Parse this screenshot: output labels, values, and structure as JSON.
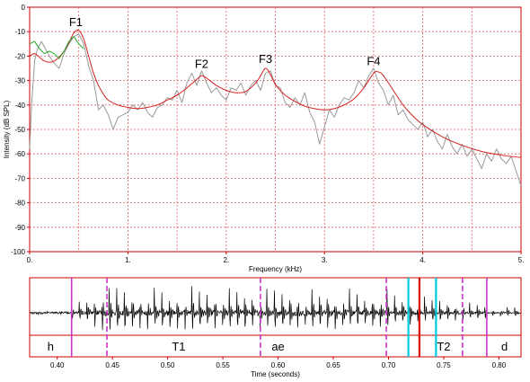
{
  "chart_data": [
    {
      "type": "line",
      "xlabel": "Frequency (kHz)",
      "ylabel": "Intensity (dB SPL)",
      "xlim": [
        0,
        5
      ],
      "ylim": [
        -100,
        0
      ],
      "x_ticks": [
        "0.",
        "1.",
        "2.",
        "3.",
        "4.",
        "5."
      ],
      "y_ticks": [
        "0",
        "-10",
        "-20",
        "-30",
        "-40",
        "-50",
        "-60",
        "-70",
        "-80",
        "-90",
        "-100"
      ],
      "grid": true,
      "colors": {
        "spectrum": "#999999",
        "envelope": "#d42020",
        "lpc_start": "#22aa22",
        "frame": "#cc0000",
        "grid": "#e06060"
      },
      "annotations": [
        {
          "label": "F1",
          "x": 0.47,
          "y": -10
        },
        {
          "label": "F2",
          "x": 1.75,
          "y": -27
        },
        {
          "label": "F3",
          "x": 2.4,
          "y": -25
        },
        {
          "label": "F4",
          "x": 3.5,
          "y": -26
        }
      ],
      "series": [
        {
          "role": "spectrum",
          "x": [
            0.0,
            0.02,
            0.05,
            0.08,
            0.12,
            0.16,
            0.2,
            0.25,
            0.3,
            0.35,
            0.4,
            0.45,
            0.5,
            0.55,
            0.6,
            0.65,
            0.7,
            0.75,
            0.8,
            0.85,
            0.9,
            0.95,
            1.0,
            1.05,
            1.1,
            1.15,
            1.2,
            1.25,
            1.3,
            1.35,
            1.4,
            1.45,
            1.5,
            1.55,
            1.6,
            1.65,
            1.7,
            1.75,
            1.8,
            1.85,
            1.9,
            1.95,
            2.0,
            2.05,
            2.1,
            2.15,
            2.2,
            2.25,
            2.3,
            2.35,
            2.4,
            2.45,
            2.5,
            2.55,
            2.6,
            2.65,
            2.7,
            2.75,
            2.8,
            2.85,
            2.9,
            2.95,
            3.0,
            3.05,
            3.1,
            3.15,
            3.2,
            3.25,
            3.3,
            3.35,
            3.4,
            3.45,
            3.5,
            3.55,
            3.6,
            3.65,
            3.7,
            3.75,
            3.8,
            3.85,
            3.9,
            3.95,
            4.0,
            4.05,
            4.1,
            4.15,
            4.2,
            4.25,
            4.3,
            4.35,
            4.4,
            4.45,
            4.5,
            4.55,
            4.6,
            4.65,
            4.7,
            4.75,
            4.8,
            4.85,
            4.9,
            4.95,
            5.0
          ],
          "y": [
            -58,
            -40,
            -22,
            -17,
            -14,
            -17,
            -20,
            -23,
            -25,
            -19,
            -15,
            -12,
            -11,
            -15,
            -24,
            -30,
            -42,
            -40,
            -44,
            -50,
            -45,
            -44,
            -43,
            -40,
            -42,
            -39,
            -43,
            -45,
            -41,
            -40,
            -37,
            -38,
            -34,
            -39,
            -31,
            -27,
            -32,
            -26,
            -31,
            -35,
            -33,
            -36,
            -38,
            -33,
            -34,
            -31,
            -36,
            -32,
            -30,
            -34,
            -27,
            -26,
            -32,
            -33,
            -39,
            -41,
            -37,
            -40,
            -35,
            -43,
            -47,
            -56,
            -49,
            -42,
            -45,
            -40,
            -37,
            -38,
            -35,
            -30,
            -33,
            -28,
            -25,
            -31,
            -34,
            -40,
            -36,
            -44,
            -42,
            -46,
            -48,
            -50,
            -47,
            -53,
            -50,
            -55,
            -58,
            -52,
            -57,
            -60,
            -56,
            -61,
            -58,
            -62,
            -66,
            -60,
            -63,
            -58,
            -62,
            -64,
            -61,
            -67,
            -73
          ]
        },
        {
          "role": "envelope",
          "x": [
            0.0,
            0.05,
            0.1,
            0.15,
            0.2,
            0.25,
            0.3,
            0.35,
            0.4,
            0.45,
            0.5,
            0.55,
            0.6,
            0.65,
            0.7,
            0.75,
            0.8,
            0.9,
            1.0,
            1.1,
            1.2,
            1.3,
            1.4,
            1.5,
            1.6,
            1.7,
            1.75,
            1.8,
            1.9,
            2.0,
            2.1,
            2.2,
            2.3,
            2.35,
            2.4,
            2.45,
            2.5,
            2.6,
            2.7,
            2.8,
            2.9,
            3.0,
            3.1,
            3.2,
            3.3,
            3.4,
            3.5,
            3.55,
            3.6,
            3.7,
            3.8,
            3.9,
            4.0,
            4.2,
            4.4,
            4.6,
            4.8,
            5.0
          ],
          "y": [
            -20,
            -19,
            -20.5,
            -22,
            -22.5,
            -22,
            -20.5,
            -18,
            -14.5,
            -10.5,
            -9.5,
            -13,
            -20,
            -27,
            -32,
            -35.5,
            -38,
            -40,
            -41,
            -41.5,
            -41,
            -40,
            -38,
            -36,
            -33,
            -29.5,
            -28,
            -29,
            -32,
            -34,
            -35,
            -34.5,
            -31,
            -28,
            -25,
            -27.5,
            -31.5,
            -36,
            -38.5,
            -40.5,
            -41.5,
            -42,
            -41.5,
            -40,
            -37.5,
            -33,
            -27,
            -26.5,
            -28,
            -34,
            -40,
            -44.5,
            -48,
            -53,
            -56.5,
            -59,
            -60.5,
            -61.5
          ]
        },
        {
          "role": "lpc_start",
          "x": [
            0.0,
            0.05,
            0.1,
            0.15,
            0.2,
            0.25,
            0.3,
            0.35,
            0.4,
            0.45,
            0.5,
            0.55
          ],
          "y": [
            -15,
            -14,
            -17,
            -19,
            -18,
            -19,
            -21,
            -18,
            -14,
            -12,
            -15,
            -17
          ]
        }
      ]
    },
    {
      "type": "line",
      "subtype": "waveform",
      "xlabel": "Time (seconds)",
      "xlim": [
        0.375,
        0.82
      ],
      "x_ticks": [
        "0.40",
        "0.45",
        "0.50",
        "0.55",
        "0.60",
        "0.65",
        "0.70",
        "0.75",
        "0.80"
      ],
      "segments": [
        {
          "label": "h",
          "x": 0.394
        },
        {
          "label": "T1",
          "x": 0.51
        },
        {
          "label": "ae",
          "x": 0.6
        },
        {
          "label": "T2",
          "x": 0.75
        },
        {
          "label": "d",
          "x": 0.805
        }
      ],
      "markers": [
        {
          "t": 0.413,
          "color": "#cc33cc",
          "style": "solid"
        },
        {
          "t": 0.445,
          "color": "#cc33cc",
          "style": "dashed"
        },
        {
          "t": 0.584,
          "color": "#cc33cc",
          "style": "dashed"
        },
        {
          "t": 0.698,
          "color": "#cc33cc",
          "style": "dashed"
        },
        {
          "t": 0.718,
          "color": "#00ccdd",
          "style": "solid"
        },
        {
          "t": 0.728,
          "color": "#dd0000",
          "style": "solid"
        },
        {
          "t": 0.743,
          "color": "#00ccdd",
          "style": "solid"
        },
        {
          "t": 0.767,
          "color": "#cc33cc",
          "style": "dashed"
        },
        {
          "t": 0.789,
          "color": "#cc33cc",
          "style": "solid"
        }
      ]
    }
  ]
}
